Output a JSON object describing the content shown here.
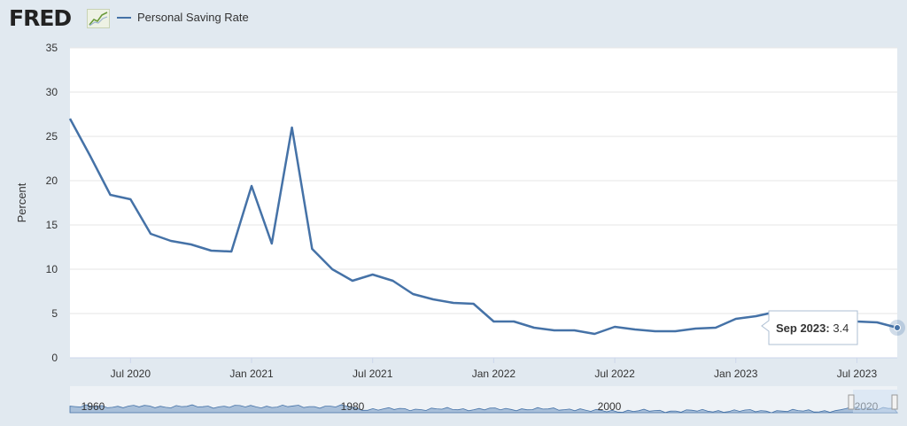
{
  "header": {
    "logo_text": "FRED",
    "logo_mark": "trend-line-icon",
    "legend_label": "Personal Saving Rate"
  },
  "tooltip": {
    "date": "Sep 2023",
    "value": "3.4"
  },
  "navigator": {
    "year_labels": [
      "1960",
      "1980",
      "2000",
      "2020"
    ]
  },
  "colors": {
    "line": "#4572a7",
    "plot_bg": "#ffffff",
    "page_bg": "#e1e9f0",
    "grid": "#e6e6e6",
    "navigator_fill": "#a8bfd9"
  },
  "chart_data": {
    "type": "line",
    "ylabel": "Percent",
    "ylim": [
      0,
      35
    ],
    "y_ticks": [
      0,
      5,
      10,
      15,
      20,
      25,
      30,
      35
    ],
    "x_ticks": [
      "Jul 2020",
      "Jan 2021",
      "Jul 2021",
      "Jan 2022",
      "Jul 2022",
      "Jan 2023",
      "Jul 2023"
    ],
    "grid": true,
    "legend_position": "top-left",
    "series": [
      {
        "name": "Personal Saving Rate",
        "x": [
          "2020-04",
          "2020-05",
          "2020-06",
          "2020-07",
          "2020-08",
          "2020-09",
          "2020-10",
          "2020-11",
          "2020-12",
          "2021-01",
          "2021-02",
          "2021-03",
          "2021-04",
          "2021-05",
          "2021-06",
          "2021-07",
          "2021-08",
          "2021-09",
          "2021-10",
          "2021-11",
          "2021-12",
          "2022-01",
          "2022-02",
          "2022-03",
          "2022-04",
          "2022-05",
          "2022-06",
          "2022-07",
          "2022-08",
          "2022-09",
          "2022-10",
          "2022-11",
          "2022-12",
          "2023-01",
          "2023-02",
          "2023-03",
          "2023-04",
          "2023-05",
          "2023-06",
          "2023-07",
          "2023-08",
          "2023-09"
        ],
        "values": [
          27.0,
          22.8,
          18.4,
          17.9,
          14.0,
          13.2,
          12.8,
          12.1,
          12.0,
          19.4,
          12.9,
          26.0,
          12.3,
          10.0,
          8.7,
          9.4,
          8.7,
          7.2,
          6.6,
          6.2,
          6.1,
          4.1,
          4.1,
          3.4,
          3.1,
          3.1,
          2.7,
          3.5,
          3.2,
          3.0,
          3.0,
          3.3,
          3.4,
          4.4,
          4.7,
          5.2,
          5.1,
          4.4,
          4.3,
          4.1,
          4.0,
          3.4
        ]
      }
    ]
  }
}
